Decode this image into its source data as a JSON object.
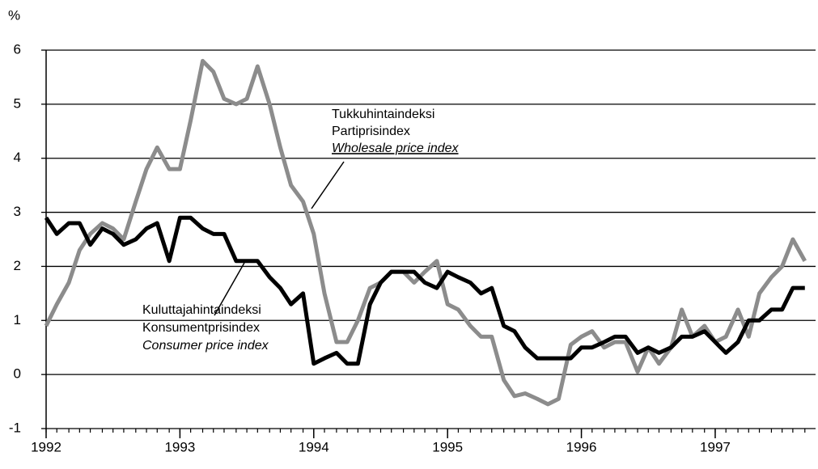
{
  "chart_data": {
    "type": "line",
    "y_unit": "%",
    "x": [
      1992.0,
      1992.08,
      1992.17,
      1992.25,
      1992.33,
      1992.42,
      1992.5,
      1992.58,
      1992.67,
      1992.75,
      1992.83,
      1992.92,
      1993.0,
      1993.08,
      1993.17,
      1993.25,
      1993.33,
      1993.42,
      1993.5,
      1993.58,
      1993.67,
      1993.75,
      1993.83,
      1993.92,
      1994.0,
      1994.08,
      1994.17,
      1994.25,
      1994.33,
      1994.42,
      1994.5,
      1994.58,
      1994.67,
      1994.75,
      1994.83,
      1994.92,
      1995.0,
      1995.08,
      1995.17,
      1995.25,
      1995.33,
      1995.42,
      1995.5,
      1995.58,
      1995.67,
      1995.75,
      1995.83,
      1995.92,
      1996.0,
      1996.08,
      1996.17,
      1996.25,
      1996.33,
      1996.42,
      1996.5,
      1996.58,
      1996.67,
      1996.75,
      1996.83,
      1996.92,
      1997.0,
      1997.08,
      1997.17,
      1997.25,
      1997.33,
      1997.42,
      1997.5,
      1997.58,
      1997.67
    ],
    "series": [
      {
        "name": "Wholesale price index",
        "name_fi": "Tukkuhintaindeksi",
        "name_sv": "Partiprisindex",
        "color": "#8c8c8c",
        "values": [
          0.9,
          1.3,
          1.7,
          2.3,
          2.6,
          2.8,
          2.7,
          2.5,
          3.2,
          3.8,
          4.2,
          3.8,
          3.8,
          4.7,
          5.8,
          5.6,
          5.1,
          5.0,
          5.1,
          5.7,
          5.0,
          4.2,
          3.5,
          3.2,
          2.6,
          1.5,
          0.6,
          0.6,
          1.0,
          1.6,
          1.7,
          1.9,
          1.9,
          1.7,
          1.9,
          2.1,
          1.3,
          1.2,
          0.9,
          0.7,
          0.7,
          -0.1,
          -0.4,
          -0.35,
          -0.45,
          -0.55,
          -0.45,
          0.55,
          0.7,
          0.8,
          0.5,
          0.6,
          0.6,
          0.05,
          0.5,
          0.2,
          0.5,
          1.2,
          0.7,
          0.9,
          0.6,
          0.7,
          1.2,
          0.7,
          1.5,
          1.8,
          2.0,
          2.5,
          2.1
        ]
      },
      {
        "name": "Consumer price index",
        "name_fi": "Kuluttajahintaindeksi",
        "name_sv": "Konsumentprisindex",
        "color": "#000000",
        "values": [
          2.9,
          2.6,
          2.8,
          2.8,
          2.4,
          2.7,
          2.6,
          2.4,
          2.5,
          2.7,
          2.8,
          2.1,
          2.9,
          2.9,
          2.7,
          2.6,
          2.6,
          2.1,
          2.1,
          2.1,
          1.8,
          1.6,
          1.3,
          1.5,
          0.2,
          0.3,
          0.4,
          0.2,
          0.2,
          1.3,
          1.7,
          1.9,
          1.9,
          1.9,
          1.7,
          1.6,
          1.9,
          1.8,
          1.7,
          1.5,
          1.6,
          0.9,
          0.8,
          0.5,
          0.3,
          0.3,
          0.3,
          0.3,
          0.5,
          0.5,
          0.6,
          0.7,
          0.7,
          0.4,
          0.5,
          0.4,
          0.5,
          0.7,
          0.7,
          0.8,
          0.6,
          0.4,
          0.6,
          1.0,
          1.0,
          1.2,
          1.2,
          1.6,
          1.6
        ]
      }
    ],
    "xlim": [
      1992,
      1997.75
    ],
    "xticks": [
      1992,
      1993,
      1994,
      1995,
      1996,
      1997
    ],
    "ylim": [
      -1,
      6
    ],
    "yticks": [
      -1,
      0,
      1,
      2,
      3,
      4,
      5,
      6
    ],
    "grid": true
  }
}
